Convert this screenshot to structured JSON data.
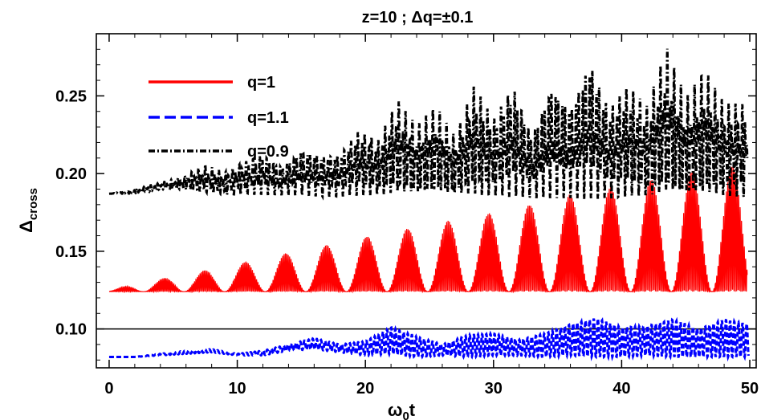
{
  "chart_data": {
    "type": "line",
    "title": "z=10 ;  Δq=±0.1",
    "xlabel": "ω₀t",
    "ylabel": "Δcross",
    "xlim": [
      -1,
      50.5
    ],
    "ylim": [
      0.075,
      0.29
    ],
    "x_ticks": [
      0,
      10,
      20,
      30,
      40,
      50
    ],
    "x_tick_labels": [
      "0",
      "10",
      "20",
      "30",
      "40",
      "50"
    ],
    "y_ticks": [
      0.1,
      0.15,
      0.2,
      0.25
    ],
    "y_tick_labels": [
      "0.10",
      "0.15",
      "0.20",
      "0.25"
    ],
    "reference_line": 0.1,
    "legend_position": "top-left",
    "series": [
      {
        "name": "q=1",
        "color": "#ff0000",
        "style": "solid",
        "baseline": 0.124,
        "x": [
          0,
          3.2,
          6.4,
          9.5,
          12.7,
          15.9,
          19.1,
          22.2,
          25.4,
          28.6,
          31.8,
          34.9,
          38.1,
          41.3,
          44.5,
          47.6,
          49.8
        ],
        "y_max": [
          0.125,
          0.131,
          0.136,
          0.141,
          0.147,
          0.152,
          0.158,
          0.163,
          0.168,
          0.173,
          0.178,
          0.185,
          0.19,
          0.195,
          0.2,
          0.204,
          0.205
        ]
      },
      {
        "name": "q=1.1",
        "color": "#0000ff",
        "style": "dashed",
        "x": [
          0,
          2,
          4,
          6,
          8,
          10,
          12,
          14,
          16,
          18,
          20,
          22,
          24,
          26,
          28,
          30,
          32,
          34,
          36,
          38,
          40,
          42,
          44,
          46,
          48,
          50
        ],
        "y_low": [
          0.082,
          0.082,
          0.083,
          0.084,
          0.085,
          0.083,
          0.083,
          0.086,
          0.087,
          0.085,
          0.083,
          0.084,
          0.082,
          0.083,
          0.082,
          0.083,
          0.083,
          0.082,
          0.083,
          0.082,
          0.082,
          0.083,
          0.082,
          0.082,
          0.082,
          0.082
        ],
        "y_high": [
          0.082,
          0.082,
          0.084,
          0.086,
          0.087,
          0.084,
          0.086,
          0.09,
          0.094,
          0.09,
          0.092,
          0.101,
          0.095,
          0.09,
          0.096,
          0.097,
          0.093,
          0.097,
          0.103,
          0.107,
          0.101,
          0.102,
          0.106,
          0.1,
          0.106,
          0.103
        ]
      },
      {
        "name": "q=0.9",
        "color": "#000000",
        "style": "dash-dot",
        "x": [
          0,
          1.5,
          3,
          4.5,
          6,
          7.5,
          9,
          10.5,
          12,
          13.5,
          15,
          16.5,
          18,
          19.5,
          21,
          22.5,
          24,
          25.5,
          27,
          28.5,
          30,
          31.5,
          33,
          34.5,
          36,
          37.5,
          39,
          40.5,
          42,
          43.5,
          45,
          46.5,
          48,
          49.8
        ],
        "y_low": [
          0.187,
          0.187,
          0.188,
          0.19,
          0.189,
          0.187,
          0.186,
          0.186,
          0.186,
          0.186,
          0.186,
          0.185,
          0.185,
          0.185,
          0.185,
          0.185,
          0.185,
          0.185,
          0.185,
          0.184,
          0.184,
          0.184,
          0.184,
          0.184,
          0.184,
          0.183,
          0.183,
          0.183,
          0.183,
          0.183,
          0.183,
          0.183,
          0.183,
          0.183
        ],
        "y_high": [
          0.187,
          0.189,
          0.192,
          0.195,
          0.199,
          0.206,
          0.201,
          0.208,
          0.213,
          0.205,
          0.216,
          0.212,
          0.213,
          0.229,
          0.222,
          0.248,
          0.231,
          0.244,
          0.224,
          0.258,
          0.236,
          0.259,
          0.226,
          0.259,
          0.244,
          0.275,
          0.243,
          0.258,
          0.244,
          0.282,
          0.249,
          0.267,
          0.246,
          0.246
        ]
      }
    ]
  }
}
